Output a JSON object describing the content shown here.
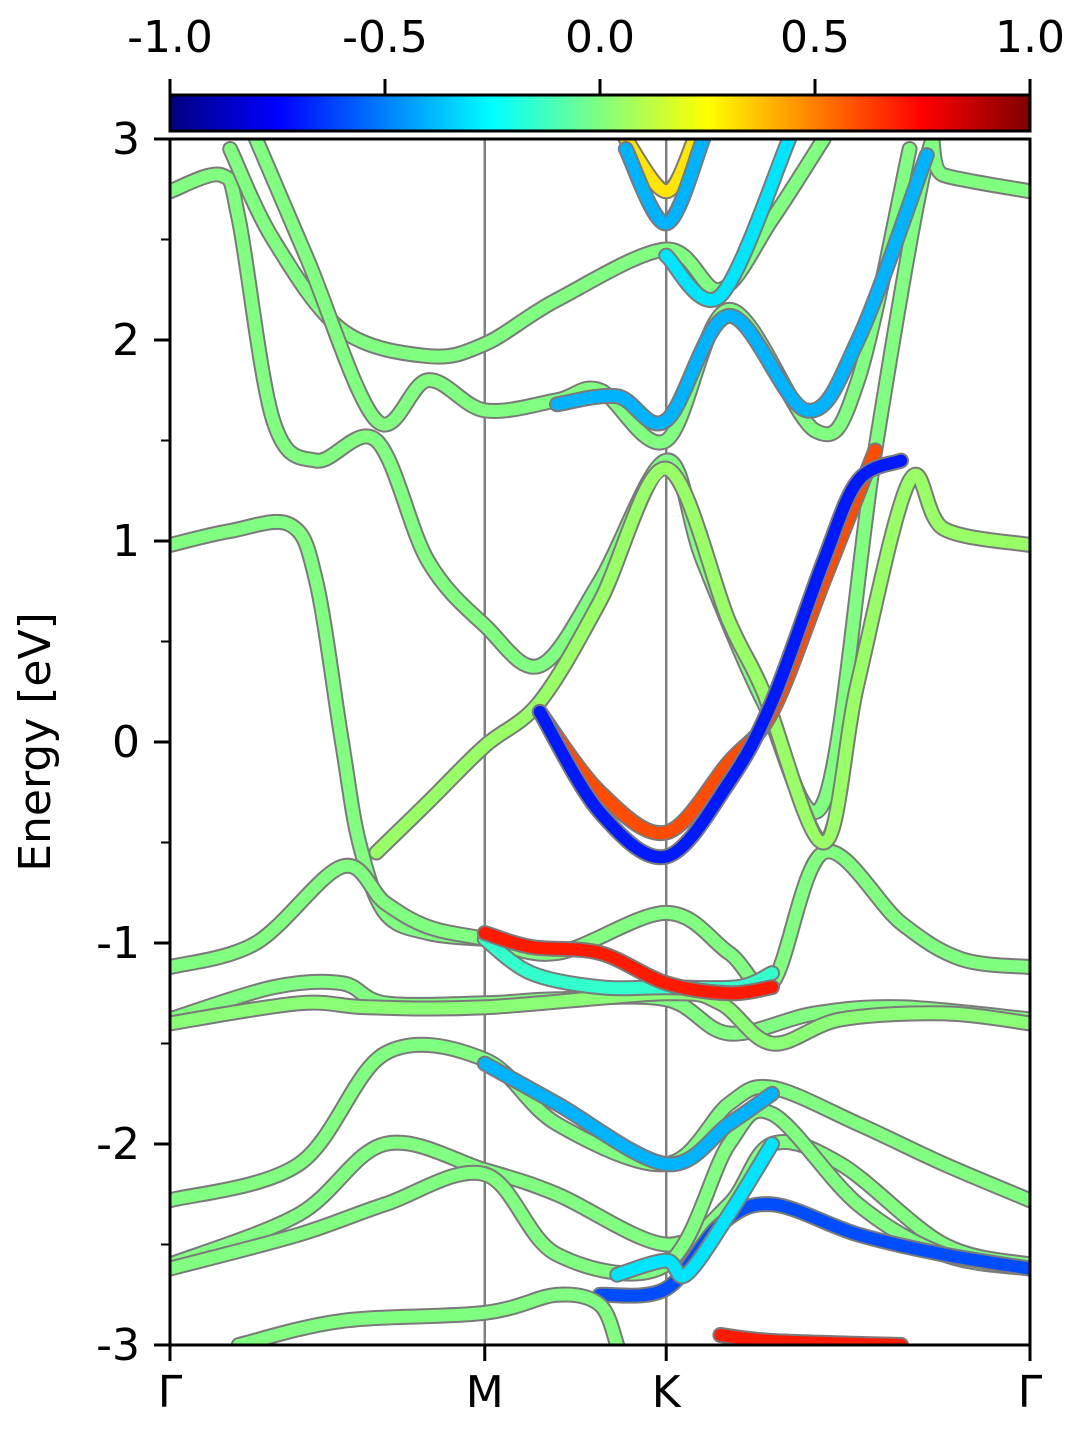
{
  "chart_data": {
    "type": "line",
    "ylabel": "Energy [eV]",
    "ylim": [
      -3,
      3
    ],
    "yticks": [
      "3",
      "2",
      "1",
      "0",
      "-1",
      "-2",
      "-3"
    ],
    "ytick_values": [
      3,
      2,
      1,
      0,
      -1,
      -2,
      -3
    ],
    "yminor_ticks": [
      2.5,
      1.5,
      0.5,
      -0.5,
      -1.5,
      -2.5
    ],
    "x_symmetry_points": [
      {
        "label": "Γ",
        "x": 0.0
      },
      {
        "label": "M",
        "x": 0.366
      },
      {
        "label": "K",
        "x": 0.577
      },
      {
        "label": "Γ",
        "x": 1.0
      }
    ],
    "xlim": [
      0,
      1
    ],
    "colorbar": {
      "colormap": "jet",
      "range": [
        -1.0,
        1.0
      ],
      "tick_labels": [
        "-1.0",
        "-0.5",
        "0.0",
        "0.5",
        "1.0"
      ],
      "tick_values": [
        -1.0,
        -0.5,
        0.0,
        0.5,
        1.0
      ]
    },
    "series": [
      {
        "color_value": 0.0,
        "points": [
          [
            0,
            0.98
          ],
          [
            0.07,
            1.05
          ],
          [
            0.14,
            1.08
          ],
          [
            0.17,
            0.8
          ],
          [
            0.2,
            0.0
          ],
          [
            0.22,
            -0.5
          ],
          [
            0.25,
            -0.85
          ],
          [
            0.3,
            -0.95
          ],
          [
            0.366,
            -0.98
          ]
        ]
      },
      {
        "color_value": 0.0,
        "points": [
          [
            0,
            -1.12
          ],
          [
            0.1,
            -1.0
          ],
          [
            0.2,
            -0.62
          ],
          [
            0.25,
            -0.8
          ],
          [
            0.3,
            -0.92
          ],
          [
            0.366,
            -0.98
          ],
          [
            0.45,
            -1.05
          ],
          [
            0.577,
            -0.85
          ],
          [
            0.65,
            -1.05
          ],
          [
            0.7,
            -1.2
          ],
          [
            0.76,
            -0.55
          ],
          [
            0.85,
            -0.9
          ],
          [
            0.92,
            -1.08
          ],
          [
            1.0,
            -1.12
          ]
        ]
      },
      {
        "color_value": 0.0,
        "points": [
          [
            0,
            2.74
          ],
          [
            0.06,
            2.82
          ],
          [
            0.08,
            2.6
          ],
          [
            0.12,
            1.6
          ],
          [
            0.17,
            1.4
          ],
          [
            0.24,
            1.5
          ],
          [
            0.3,
            0.9
          ],
          [
            0.366,
            0.58
          ],
          [
            0.43,
            0.38
          ],
          [
            0.5,
            0.8
          ],
          [
            0.577,
            1.4
          ],
          [
            0.62,
            0.9
          ],
          [
            0.69,
            0.2
          ],
          [
            0.76,
            -0.3
          ],
          [
            0.82,
            1.45
          ],
          [
            0.88,
            2.9
          ],
          [
            0.9,
            2.82
          ],
          [
            1.0,
            2.74
          ]
        ]
      },
      {
        "color_value": 0.05,
        "points": [
          [
            0.24,
            -0.55
          ],
          [
            0.3,
            -0.3
          ],
          [
            0.366,
            -0.02
          ],
          [
            0.43,
            0.2
          ],
          [
            0.5,
            0.7
          ],
          [
            0.577,
            1.36
          ],
          [
            0.65,
            0.6
          ],
          [
            0.69,
            0.25
          ],
          [
            0.76,
            -0.5
          ],
          [
            0.8,
            0.3
          ],
          [
            0.86,
            1.3
          ],
          [
            0.9,
            1.06
          ],
          [
            1.0,
            0.98
          ]
        ]
      },
      {
        "color_value": 0.0,
        "points": [
          [
            0,
            -1.38
          ],
          [
            0.12,
            -1.22
          ],
          [
            0.2,
            -1.2
          ],
          [
            0.25,
            -1.3
          ],
          [
            0.366,
            -1.3
          ],
          [
            0.45,
            -1.28
          ],
          [
            0.577,
            -1.28
          ],
          [
            0.65,
            -1.45
          ],
          [
            0.75,
            -1.35
          ],
          [
            0.85,
            -1.32
          ],
          [
            1.0,
            -1.38
          ]
        ]
      },
      {
        "color_value": 0.02,
        "points": [
          [
            0,
            -1.4
          ],
          [
            0.15,
            -1.3
          ],
          [
            0.23,
            -1.32
          ],
          [
            0.366,
            -1.32
          ],
          [
            0.577,
            -1.25
          ],
          [
            0.64,
            -1.3
          ],
          [
            0.7,
            -1.5
          ],
          [
            0.78,
            -1.38
          ],
          [
            0.9,
            -1.35
          ],
          [
            1.0,
            -1.4
          ]
        ]
      },
      {
        "color_value": -0.15,
        "points": [
          [
            0.366,
            -0.98
          ],
          [
            0.42,
            -1.15
          ],
          [
            0.5,
            -1.22
          ],
          [
            0.577,
            -1.22
          ],
          [
            0.66,
            -1.22
          ],
          [
            0.7,
            -1.15
          ]
        ]
      },
      {
        "color_value": 0.7,
        "points": [
          [
            0.366,
            -0.95
          ],
          [
            0.42,
            -1.02
          ],
          [
            0.5,
            -1.05
          ],
          [
            0.577,
            -1.2
          ],
          [
            0.65,
            -1.25
          ],
          [
            0.7,
            -1.22
          ]
        ]
      },
      {
        "color_value": 0.0,
        "points": [
          [
            0,
            -2.28
          ],
          [
            0.15,
            -2.1
          ],
          [
            0.25,
            -1.55
          ],
          [
            0.366,
            -1.58
          ],
          [
            0.45,
            -1.9
          ],
          [
            0.577,
            -2.1
          ],
          [
            0.65,
            -1.8
          ],
          [
            0.7,
            -1.72
          ],
          [
            0.8,
            -1.9
          ],
          [
            0.9,
            -2.1
          ],
          [
            1.0,
            -2.28
          ]
        ]
      },
      {
        "color_value": 0.0,
        "points": [
          [
            0,
            -2.6
          ],
          [
            0.15,
            -2.35
          ],
          [
            0.25,
            -2.0
          ],
          [
            0.366,
            -2.13
          ],
          [
            0.45,
            -2.25
          ],
          [
            0.577,
            -2.5
          ],
          [
            0.65,
            -2.3
          ],
          [
            0.7,
            -2.0
          ],
          [
            0.78,
            -2.1
          ],
          [
            0.9,
            -2.5
          ],
          [
            1.0,
            -2.6
          ]
        ]
      },
      {
        "color_value": 0.0,
        "points": [
          [
            0,
            -2.62
          ],
          [
            0.15,
            -2.45
          ],
          [
            0.25,
            -2.3
          ],
          [
            0.366,
            -2.15
          ],
          [
            0.45,
            -2.55
          ],
          [
            0.577,
            -2.6
          ],
          [
            0.65,
            -2.0
          ],
          [
            0.7,
            -1.85
          ],
          [
            0.8,
            -2.3
          ],
          [
            0.9,
            -2.55
          ],
          [
            1.0,
            -2.62
          ]
        ]
      },
      {
        "color_value": -0.4,
        "points": [
          [
            0.366,
            -1.6
          ],
          [
            0.45,
            -1.8
          ],
          [
            0.577,
            -2.1
          ],
          [
            0.65,
            -1.9
          ],
          [
            0.7,
            -1.75
          ]
        ]
      },
      {
        "color_value": -0.6,
        "points": [
          [
            0.5,
            -2.75
          ],
          [
            0.577,
            -2.72
          ],
          [
            0.64,
            -2.4
          ],
          [
            0.7,
            -2.3
          ],
          [
            0.8,
            -2.45
          ],
          [
            0.9,
            -2.55
          ],
          [
            1.0,
            -2.62
          ]
        ]
      },
      {
        "color_value": 0.0,
        "points": [
          [
            0.08,
            -3.0
          ],
          [
            0.2,
            -2.88
          ],
          [
            0.366,
            -2.84
          ],
          [
            0.45,
            -2.75
          ],
          [
            0.5,
            -2.8
          ],
          [
            0.52,
            -3.0
          ]
        ]
      },
      {
        "color_value": 0.7,
        "points": [
          [
            0.64,
            -2.95
          ],
          [
            0.7,
            -2.98
          ],
          [
            0.85,
            -3.0
          ]
        ]
      },
      {
        "color_value": -0.3,
        "points": [
          [
            0.52,
            -2.65
          ],
          [
            0.577,
            -2.58
          ],
          [
            0.6,
            -2.65
          ],
          [
            0.65,
            -2.35
          ],
          [
            0.7,
            -2.0
          ]
        ]
      },
      {
        "color_value": 0.0,
        "points": [
          [
            0.07,
            2.95
          ],
          [
            0.12,
            2.5
          ],
          [
            0.2,
            2.05
          ],
          [
            0.3,
            1.92
          ],
          [
            0.366,
            1.98
          ],
          [
            0.45,
            2.2
          ],
          [
            0.577,
            2.45
          ],
          [
            0.64,
            2.25
          ],
          [
            0.7,
            2.6
          ],
          [
            0.76,
            3.0
          ]
        ]
      },
      {
        "color_value": 0.0,
        "points": [
          [
            0.1,
            3.0
          ],
          [
            0.16,
            2.4
          ],
          [
            0.24,
            1.6
          ],
          [
            0.3,
            1.8
          ],
          [
            0.366,
            1.65
          ],
          [
            0.45,
            1.7
          ],
          [
            0.5,
            1.75
          ],
          [
            0.577,
            1.5
          ],
          [
            0.65,
            2.15
          ],
          [
            0.75,
            1.55
          ],
          [
            0.8,
            1.8
          ],
          [
            0.86,
            2.95
          ]
        ]
      },
      {
        "color_value": -0.4,
        "points": [
          [
            0.45,
            1.68
          ],
          [
            0.52,
            1.72
          ],
          [
            0.577,
            1.6
          ],
          [
            0.65,
            2.12
          ],
          [
            0.74,
            1.65
          ],
          [
            0.8,
            2.0
          ],
          [
            0.88,
            2.92
          ]
        ]
      },
      {
        "color_value": 0.3,
        "points": [
          [
            0.53,
            3.0
          ],
          [
            0.577,
            2.74
          ],
          [
            0.61,
            3.0
          ]
        ]
      },
      {
        "color_value": -0.4,
        "points": [
          [
            0.53,
            2.95
          ],
          [
            0.577,
            2.58
          ],
          [
            0.62,
            3.0
          ]
        ]
      },
      {
        "color_value": -0.3,
        "points": [
          [
            0.577,
            2.42
          ],
          [
            0.64,
            2.22
          ],
          [
            0.72,
            3.0
          ]
        ]
      },
      {
        "color_value": 0.6,
        "points": [
          [
            0.43,
            0.15
          ],
          [
            0.5,
            -0.25
          ],
          [
            0.577,
            -0.45
          ],
          [
            0.65,
            -0.1
          ],
          [
            0.7,
            0.15
          ],
          [
            0.76,
            0.8
          ],
          [
            0.82,
            1.45
          ]
        ]
      },
      {
        "color_value": -0.7,
        "points": [
          [
            0.43,
            0.15
          ],
          [
            0.5,
            -0.35
          ],
          [
            0.577,
            -0.57
          ],
          [
            0.65,
            -0.2
          ],
          [
            0.7,
            0.2
          ],
          [
            0.76,
            0.9
          ],
          [
            0.8,
            1.3
          ],
          [
            0.85,
            1.4
          ]
        ]
      }
    ]
  }
}
